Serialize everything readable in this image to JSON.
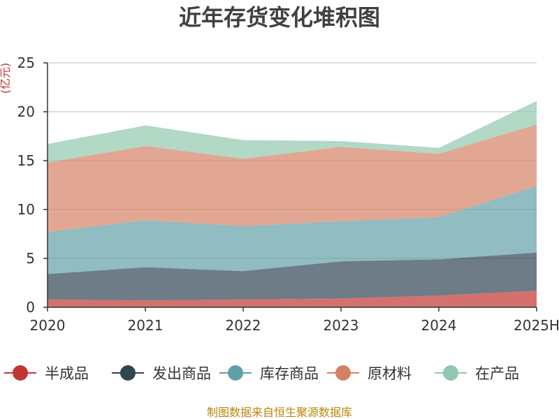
{
  "chart_data": {
    "type": "area",
    "stacked": true,
    "title": "近年存货变化堆积图",
    "ylabel": "(亿元)",
    "xlabel": "",
    "categories": [
      "2020",
      "2021",
      "2022",
      "2023",
      "2024",
      "2025H"
    ],
    "ylim": [
      0,
      25
    ],
    "yticks": [
      0,
      5,
      10,
      15,
      20,
      25
    ],
    "grid": true,
    "legend_position": "bottom",
    "series": [
      {
        "name": "半成品",
        "color": "#c23531",
        "values": [
          0.8,
          0.7,
          0.8,
          0.9,
          1.2,
          1.7
        ]
      },
      {
        "name": "发出商品",
        "color": "#2f4554",
        "values": [
          2.6,
          3.4,
          2.9,
          3.8,
          3.7,
          3.9
        ]
      },
      {
        "name": "库存商品",
        "color": "#61a0a8",
        "values": [
          4.3,
          4.8,
          4.6,
          4.1,
          4.3,
          6.8
        ]
      },
      {
        "name": "原材料",
        "color": "#d48265",
        "values": [
          7.1,
          7.6,
          6.9,
          7.6,
          6.5,
          6.3
        ]
      },
      {
        "name": "在产品",
        "color": "#91c7ae",
        "values": [
          1.9,
          2.1,
          1.9,
          0.6,
          0.6,
          2.4
        ]
      }
    ]
  },
  "source_text": "制图数据来自恒生聚源数据库"
}
